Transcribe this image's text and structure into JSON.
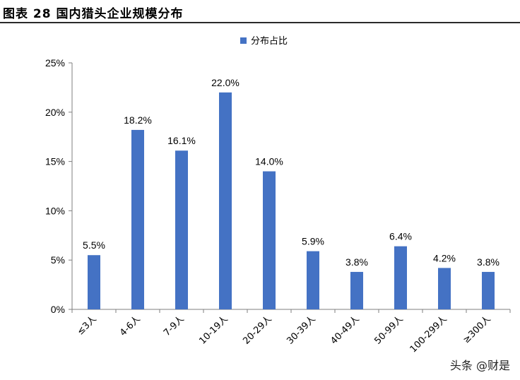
{
  "header": {
    "title": "图表 28 国内猎头企业规模分布"
  },
  "watermark": "头条 @财是",
  "colors": {
    "bar": "#4472c4",
    "axis": "#7f7f7f",
    "text": "#000000"
  },
  "chart_data": {
    "type": "bar",
    "title": "",
    "xlabel": "",
    "ylabel": "",
    "categories": [
      "≤3人",
      "4-6人",
      "7-9人",
      "10-19人",
      "20-29人",
      "30-39人",
      "40-49人",
      "50-99人",
      "100-299人",
      "≥300人"
    ],
    "series": [
      {
        "name": "分布占比",
        "values": [
          5.5,
          18.2,
          16.1,
          22.0,
          14.0,
          5.9,
          3.8,
          6.4,
          4.2,
          3.8
        ]
      }
    ],
    "data_labels": [
      "5.5%",
      "18.2%",
      "16.1%",
      "22.0%",
      "14.0%",
      "5.9%",
      "3.8%",
      "6.4%",
      "4.2%",
      "3.8%"
    ],
    "ylim": [
      0,
      25
    ],
    "yticks": [
      "0%",
      "5%",
      "10%",
      "15%",
      "20%",
      "25%"
    ],
    "legend_position": "top-center",
    "grid": false
  }
}
